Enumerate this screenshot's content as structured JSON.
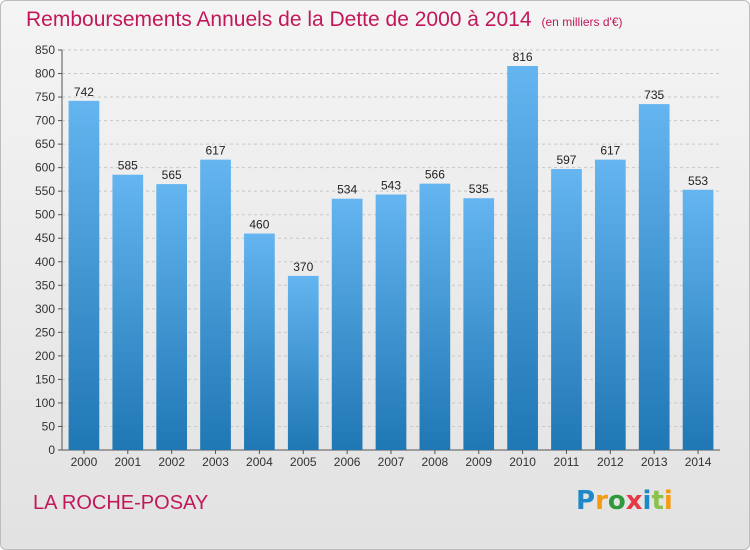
{
  "title": "Remboursements Annuels de la Dette de 2000 à 2014",
  "subtitle": "(en milliers d'€)",
  "location": "LA ROCHE-POSAY",
  "logo": {
    "letters": [
      "P",
      "r",
      "o",
      "x",
      "i",
      "t",
      "i"
    ],
    "colors": [
      "#1e88c8",
      "#f39c12",
      "#2e9a3c",
      "#e63946",
      "#1e88c8",
      "#8bc34a",
      "#f39c12"
    ]
  },
  "colors": {
    "bar_light": "#64b5f0",
    "bar_dark": "#1f77b4",
    "title": "#c2185b",
    "grid": "#c8c8c8"
  },
  "chart_data": {
    "type": "bar",
    "categories": [
      "2000",
      "2001",
      "2002",
      "2003",
      "2004",
      "2005",
      "2006",
      "2007",
      "2008",
      "2009",
      "2010",
      "2011",
      "2012",
      "2013",
      "2014"
    ],
    "values": [
      742,
      585,
      565,
      617,
      460,
      370,
      534,
      543,
      566,
      535,
      816,
      597,
      617,
      735,
      553
    ],
    "title": "Remboursements Annuels de la Dette de 2000 à 2014",
    "ylim": [
      0,
      850
    ],
    "yticks": [
      0,
      50,
      100,
      150,
      200,
      250,
      300,
      350,
      400,
      450,
      500,
      550,
      600,
      650,
      700,
      750,
      800,
      850
    ],
    "grid": true,
    "legend": "none"
  }
}
